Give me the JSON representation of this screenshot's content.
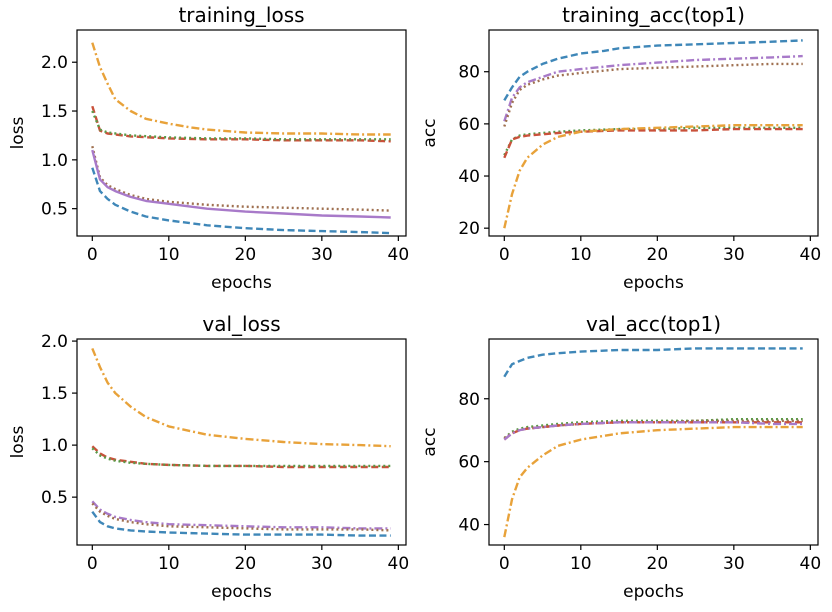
{
  "chart_data": [
    {
      "type": "line",
      "title": "training_loss",
      "xlabel": "epochs",
      "ylabel": "loss",
      "xlim": [
        -2,
        41
      ],
      "ylim": [
        0.22,
        2.33
      ],
      "xticks": [
        0,
        10,
        20,
        30,
        40
      ],
      "yticks": [
        0.5,
        1.0,
        1.5,
        2.0
      ],
      "ytick_labels": [
        "0.5",
        "1.0",
        "1.5",
        "2.0"
      ],
      "grid": false,
      "legend": "none",
      "series": [
        {
          "color": "#e8a23a",
          "dash": "dashdot",
          "x": [
            0,
            1,
            2,
            3,
            5,
            7,
            10,
            13,
            15,
            20,
            25,
            30,
            35,
            39
          ],
          "y": [
            2.2,
            1.95,
            1.78,
            1.62,
            1.5,
            1.42,
            1.37,
            1.33,
            1.31,
            1.28,
            1.27,
            1.27,
            1.26,
            1.26
          ]
        },
        {
          "color": "#c9513a",
          "dash": "dashed",
          "x": [
            0,
            1,
            2,
            5,
            10,
            15,
            20,
            25,
            30,
            35,
            39
          ],
          "y": [
            1.55,
            1.3,
            1.27,
            1.24,
            1.22,
            1.21,
            1.21,
            1.2,
            1.2,
            1.2,
            1.19
          ]
        },
        {
          "color": "#5a9a48",
          "dash": "dotted",
          "x": [
            0,
            1,
            2,
            5,
            10,
            15,
            20,
            25,
            30,
            35,
            39
          ],
          "y": [
            1.5,
            1.31,
            1.28,
            1.25,
            1.23,
            1.22,
            1.22,
            1.21,
            1.21,
            1.21,
            1.21
          ]
        },
        {
          "color": "#9f7050",
          "dash": "dotted",
          "x": [
            0,
            1,
            2,
            3,
            5,
            7,
            10,
            15,
            20,
            25,
            30,
            35,
            39
          ],
          "y": [
            1.14,
            0.82,
            0.74,
            0.7,
            0.64,
            0.6,
            0.57,
            0.54,
            0.52,
            0.51,
            0.5,
            0.49,
            0.48
          ]
        },
        {
          "color": "#a87ac9",
          "dash": "solid",
          "x": [
            0,
            1,
            2,
            3,
            5,
            7,
            10,
            15,
            20,
            25,
            30,
            35,
            39
          ],
          "y": [
            1.1,
            0.8,
            0.72,
            0.68,
            0.62,
            0.58,
            0.55,
            0.5,
            0.47,
            0.45,
            0.43,
            0.42,
            0.41
          ]
        },
        {
          "color": "#3f87b8",
          "dash": "dashed",
          "x": [
            0,
            1,
            2,
            3,
            5,
            7,
            10,
            15,
            20,
            25,
            30,
            35,
            39
          ],
          "y": [
            0.92,
            0.68,
            0.6,
            0.54,
            0.47,
            0.42,
            0.38,
            0.33,
            0.3,
            0.28,
            0.27,
            0.26,
            0.25
          ]
        }
      ]
    },
    {
      "type": "line",
      "title": "training_acc(top1)",
      "xlabel": "epochs",
      "ylabel": "acc",
      "xlim": [
        -2,
        41
      ],
      "ylim": [
        17,
        96
      ],
      "xticks": [
        0,
        10,
        20,
        30,
        40
      ],
      "yticks": [
        20,
        40,
        60,
        80
      ],
      "ytick_labels": [
        "20",
        "40",
        "60",
        "80"
      ],
      "grid": false,
      "legend": "none",
      "series": [
        {
          "color": "#3f87b8",
          "dash": "dashed",
          "x": [
            0,
            1,
            2,
            3,
            5,
            7,
            10,
            13,
            15,
            20,
            25,
            30,
            35,
            39
          ],
          "y": [
            69,
            74,
            78,
            80,
            83,
            85,
            87,
            88,
            89,
            90,
            90.5,
            91,
            91.5,
            92
          ]
        },
        {
          "color": "#a87ac9",
          "dash": "dashdot",
          "x": [
            0,
            1,
            2,
            3,
            5,
            7,
            10,
            15,
            20,
            25,
            30,
            35,
            39
          ],
          "y": [
            61,
            70,
            74,
            76,
            78,
            80,
            81,
            82.5,
            83.5,
            84.5,
            85,
            85.5,
            86
          ]
        },
        {
          "color": "#9f7050",
          "dash": "dotted",
          "x": [
            0,
            1,
            2,
            3,
            5,
            7,
            10,
            15,
            20,
            25,
            30,
            35,
            39
          ],
          "y": [
            59,
            68,
            73,
            75,
            77,
            78.5,
            79.5,
            81,
            81.5,
            82,
            82.5,
            83,
            83
          ]
        },
        {
          "color": "#5a9a48",
          "dash": "dotted",
          "x": [
            0,
            1,
            2,
            3,
            5,
            7,
            10,
            15,
            20,
            25,
            30,
            35,
            39
          ],
          "y": [
            48,
            54,
            55.5,
            56,
            56.5,
            57,
            57.5,
            58,
            58,
            58.5,
            58.5,
            58.5,
            58.5
          ]
        },
        {
          "color": "#c9513a",
          "dash": "dashed",
          "x": [
            0,
            1,
            2,
            3,
            5,
            7,
            10,
            15,
            20,
            25,
            30,
            35,
            39
          ],
          "y": [
            47,
            54,
            55,
            55.5,
            56,
            56.5,
            57,
            57.5,
            57.5,
            57.5,
            58,
            58,
            58
          ]
        },
        {
          "color": "#e8a23a",
          "dash": "dashdot",
          "x": [
            0,
            1,
            2,
            3,
            5,
            7,
            10,
            15,
            20,
            25,
            30,
            35,
            39
          ],
          "y": [
            20,
            33,
            42,
            47,
            52,
            55,
            57,
            58,
            58.5,
            59,
            59.5,
            59.5,
            59.5
          ]
        }
      ]
    },
    {
      "type": "line",
      "title": "val_loss",
      "xlabel": "epochs",
      "ylabel": "loss",
      "xlim": [
        -2,
        41
      ],
      "ylim": [
        0.04,
        2.02
      ],
      "xticks": [
        0,
        10,
        20,
        30,
        40
      ],
      "yticks": [
        0.5,
        1.0,
        1.5,
        2.0
      ],
      "ytick_labels": [
        "0.5",
        "1.0",
        "1.5",
        "2.0"
      ],
      "grid": false,
      "legend": "none",
      "series": [
        {
          "color": "#e8a23a",
          "dash": "dashdot",
          "x": [
            0,
            1,
            2,
            3,
            5,
            7,
            10,
            15,
            20,
            25,
            30,
            35,
            39
          ],
          "y": [
            1.93,
            1.75,
            1.6,
            1.5,
            1.37,
            1.27,
            1.18,
            1.1,
            1.06,
            1.03,
            1.01,
            1.0,
            0.99
          ]
        },
        {
          "color": "#c9513a",
          "dash": "dashed",
          "x": [
            0,
            1,
            2,
            3,
            5,
            7,
            10,
            15,
            20,
            25,
            30,
            35,
            39
          ],
          "y": [
            0.99,
            0.92,
            0.88,
            0.86,
            0.84,
            0.82,
            0.81,
            0.8,
            0.8,
            0.79,
            0.79,
            0.79,
            0.79
          ]
        },
        {
          "color": "#5a9a48",
          "dash": "dotted",
          "x": [
            0,
            1,
            2,
            3,
            5,
            7,
            10,
            15,
            20,
            25,
            30,
            35,
            39
          ],
          "y": [
            0.97,
            0.9,
            0.87,
            0.85,
            0.83,
            0.82,
            0.81,
            0.8,
            0.8,
            0.8,
            0.8,
            0.8,
            0.8
          ]
        },
        {
          "color": "#a87ac9",
          "dash": "dashdot",
          "x": [
            0,
            1,
            2,
            3,
            5,
            7,
            10,
            15,
            20,
            25,
            30,
            35,
            39
          ],
          "y": [
            0.46,
            0.38,
            0.34,
            0.31,
            0.28,
            0.26,
            0.24,
            0.23,
            0.22,
            0.21,
            0.21,
            0.2,
            0.2
          ]
        },
        {
          "color": "#9f7050",
          "dash": "dotted",
          "x": [
            0,
            1,
            2,
            3,
            5,
            7,
            10,
            15,
            20,
            25,
            30,
            35,
            39
          ],
          "y": [
            0.44,
            0.36,
            0.32,
            0.29,
            0.26,
            0.24,
            0.22,
            0.21,
            0.2,
            0.19,
            0.19,
            0.19,
            0.18
          ]
        },
        {
          "color": "#3f87b8",
          "dash": "dashed",
          "x": [
            0,
            1,
            2,
            3,
            5,
            7,
            10,
            15,
            20,
            25,
            30,
            35,
            39
          ],
          "y": [
            0.36,
            0.26,
            0.22,
            0.2,
            0.18,
            0.17,
            0.16,
            0.15,
            0.14,
            0.14,
            0.14,
            0.13,
            0.13
          ]
        }
      ]
    },
    {
      "type": "line",
      "title": "val_acc(top1)",
      "xlabel": "epochs",
      "ylabel": "acc",
      "xlim": [
        -2,
        41
      ],
      "ylim": [
        33.5,
        99
      ],
      "xticks": [
        0,
        10,
        20,
        30,
        40
      ],
      "yticks": [
        40,
        60,
        80
      ],
      "ytick_labels": [
        "40",
        "60",
        "80"
      ],
      "grid": false,
      "legend": "none",
      "series": [
        {
          "color": "#3f87b8",
          "dash": "dashed",
          "x": [
            0,
            1,
            2,
            3,
            5,
            7,
            10,
            15,
            20,
            25,
            30,
            35,
            39
          ],
          "y": [
            87,
            91,
            92,
            93,
            94,
            94.5,
            95,
            95.5,
            95.5,
            96,
            96,
            96,
            96
          ]
        },
        {
          "color": "#5a9a48",
          "dash": "dotted",
          "x": [
            0,
            1,
            2,
            3,
            5,
            7,
            10,
            15,
            20,
            25,
            30,
            35,
            39
          ],
          "y": [
            67.5,
            69.5,
            70.5,
            71,
            71.5,
            72,
            72.5,
            73,
            73,
            73,
            73.5,
            73.5,
            73.5
          ]
        },
        {
          "color": "#9f7050",
          "dash": "dotted",
          "x": [
            0,
            1,
            2,
            3,
            5,
            7,
            10,
            15,
            20,
            25,
            30,
            35,
            39
          ],
          "y": [
            67.5,
            69,
            70,
            70.5,
            71,
            71.5,
            72,
            72.5,
            72.5,
            73,
            73,
            73,
            73
          ]
        },
        {
          "color": "#c9513a",
          "dash": "dashed",
          "x": [
            0,
            1,
            2,
            3,
            5,
            7,
            10,
            15,
            20,
            25,
            30,
            35,
            39
          ],
          "y": [
            67,
            69,
            70,
            70.5,
            71,
            71.5,
            72,
            72.5,
            72.5,
            72.5,
            72.5,
            72.5,
            72.5
          ]
        },
        {
          "color": "#a87ac9",
          "dash": "dashdot",
          "x": [
            0,
            1,
            2,
            3,
            5,
            7,
            10,
            15,
            20,
            25,
            30,
            35,
            39
          ],
          "y": [
            67,
            69,
            70,
            70.5,
            71,
            71.5,
            72,
            72.5,
            72.5,
            72.5,
            72.5,
            72,
            72
          ]
        },
        {
          "color": "#e8a23a",
          "dash": "dashdot",
          "x": [
            0,
            1,
            2,
            3,
            5,
            7,
            10,
            15,
            20,
            25,
            30,
            35,
            39
          ],
          "y": [
            36,
            48,
            55,
            58,
            62,
            65,
            67,
            69,
            70,
            70.5,
            71,
            71,
            71
          ]
        }
      ]
    }
  ]
}
